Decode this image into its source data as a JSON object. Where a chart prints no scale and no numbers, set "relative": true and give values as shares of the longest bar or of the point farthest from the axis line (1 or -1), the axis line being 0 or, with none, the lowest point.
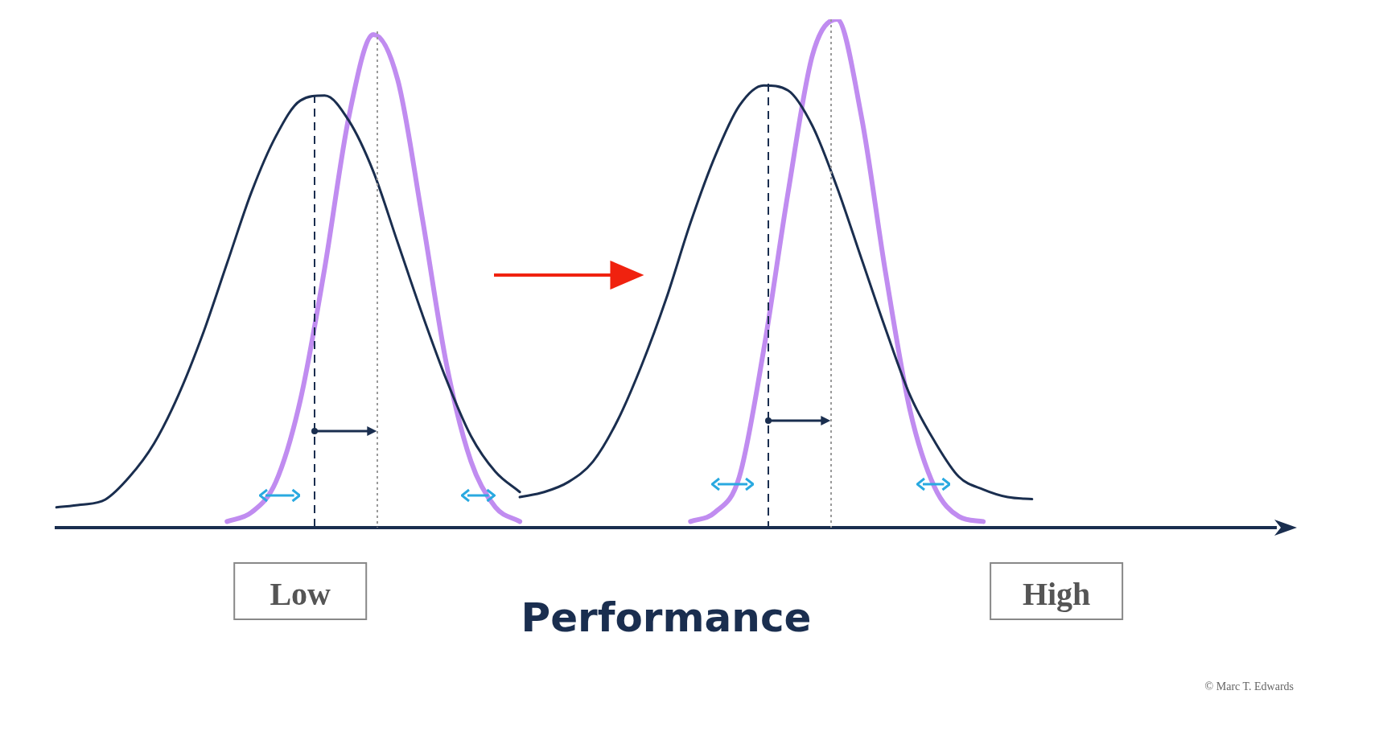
{
  "chart_data": {
    "type": "line",
    "relative": true,
    "xlabel": "Performance",
    "grid": false,
    "legend": false,
    "marker": "none",
    "line_style": "solid",
    "tick_labels": "x",
    "categories": [
      null,
      null,
      null,
      null,
      null,
      null,
      null,
      null,
      null,
      null,
      "Low",
      null,
      null,
      null,
      null,
      null,
      null,
      null,
      null,
      null,
      null,
      null,
      null,
      null,
      null,
      null,
      null,
      null,
      null,
      null,
      null,
      null,
      null,
      null,
      null,
      null,
      null,
      null,
      null,
      null,
      null,
      "High",
      null,
      null,
      null,
      null,
      null,
      null,
      null,
      null,
      null
    ],
    "series": [
      {
        "color": "#1a2e4f",
        "values": [
          0.04,
          0.045,
          0.055,
          0.1,
          0.165,
          0.26,
          0.38,
          0.52,
          0.66,
          0.77,
          0.84,
          0.85,
          0.8,
          0.7,
          0.56,
          0.42,
          0.29,
          0.18,
          0.11,
          0.07,
          null,
          null,
          null,
          null,
          null,
          null,
          null,
          null,
          null,
          null,
          null,
          null,
          null,
          null,
          null,
          null,
          null,
          null,
          null,
          null,
          null,
          null,
          null,
          null,
          null,
          null,
          null,
          null,
          null,
          null,
          null
        ]
      },
      {
        "color": "#c08cf0",
        "values": [
          null,
          null,
          null,
          null,
          null,
          null,
          null,
          0.012,
          0.03,
          0.09,
          0.25,
          0.51,
          0.81,
          0.97,
          0.88,
          0.61,
          0.32,
          0.13,
          0.04,
          0.012,
          null,
          null,
          null,
          null,
          null,
          null,
          null,
          null,
          null,
          null,
          null,
          null,
          null,
          null,
          null,
          null,
          null,
          null,
          null,
          null,
          null,
          null,
          null,
          null,
          null,
          null,
          null,
          null,
          null,
          null,
          null
        ]
      },
      {
        "color": "#1a2e4f",
        "values": [
          null,
          null,
          null,
          null,
          null,
          null,
          null,
          null,
          null,
          null,
          null,
          null,
          null,
          null,
          null,
          null,
          null,
          null,
          null,
          0.06,
          0.07,
          0.09,
          0.13,
          0.21,
          0.32,
          0.45,
          0.6,
          0.73,
          0.83,
          0.87,
          0.86,
          0.79,
          0.67,
          0.53,
          0.39,
          0.26,
          0.17,
          0.1,
          0.075,
          0.06,
          0.056,
          null,
          null,
          null,
          null,
          null,
          null,
          null,
          null,
          null,
          null
        ]
      },
      {
        "color": "#c08cf0",
        "values": [
          null,
          null,
          null,
          null,
          null,
          null,
          null,
          null,
          null,
          null,
          null,
          null,
          null,
          null,
          null,
          null,
          null,
          null,
          null,
          null,
          null,
          null,
          null,
          null,
          null,
          null,
          0.012,
          0.03,
          0.1,
          0.35,
          0.66,
          0.93,
          1,
          0.81,
          0.5,
          0.23,
          0.08,
          0.022,
          0.012,
          null,
          null,
          null,
          null,
          null,
          null,
          null,
          null,
          null,
          null,
          null,
          null
        ]
      }
    ],
    "annotations": [
      "© Marc T. Edwards"
    ]
  }
}
